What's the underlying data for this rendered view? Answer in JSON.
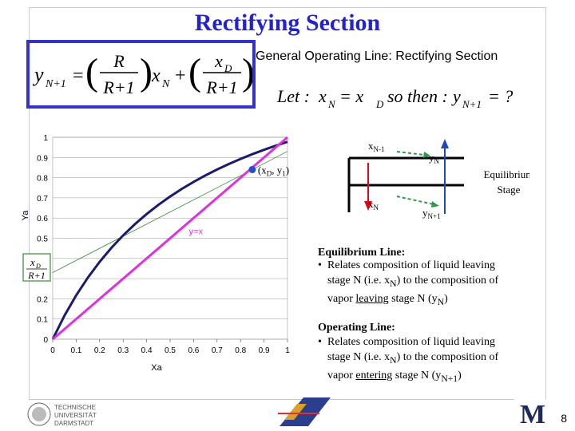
{
  "title": "Rectifying Section",
  "equation_subtitle": "General Operating Line: Rectifying Section",
  "equation": {
    "lhs_var": "y",
    "lhs_sub": "N+1",
    "eq": "=",
    "frac1_num": "R",
    "frac1_den": "R+1",
    "x_var": "x",
    "x_sub": "N",
    "plus": "+",
    "frac2_num_var": "x",
    "frac2_num_sub": "D",
    "frac2_den": "R+1"
  },
  "let_equation": {
    "let": "Let :",
    "x_var": "x",
    "x_sub": "N",
    "eq1": "= x",
    "eq1_sub": "D",
    "so": "so then :",
    "y_var": "y",
    "y_sub": "N+1",
    "rest": "= ?"
  },
  "chart_data": {
    "type": "line",
    "xlabel": "Xa",
    "ylabel": "Ya",
    "xlim": [
      0,
      1
    ],
    "ylim": [
      0,
      1
    ],
    "x_ticks": [
      "0",
      "0.1",
      "0.2",
      "0.3",
      "0.4",
      "0.5",
      "0.6",
      "0.7",
      "0.8",
      "0.9",
      "1"
    ],
    "y_ticks": [
      "0",
      "0.1",
      "0.2",
      "0.3",
      "0.4",
      "0.5",
      "0.6",
      "0.7",
      "0.8",
      "0.9",
      "1"
    ],
    "grid": true,
    "series": [
      {
        "kind": "equilibrium",
        "color": "#1a1a6e",
        "x": [
          0,
          0.05,
          0.1,
          0.15,
          0.2,
          0.25,
          0.3,
          0.35,
          0.4,
          0.45,
          0.5,
          0.55,
          0.6,
          0.65,
          0.7,
          0.75,
          0.8,
          0.85,
          0.9,
          0.95,
          1.0
        ],
        "y": [
          0,
          0.1165,
          0.2174,
          0.3056,
          0.3833,
          0.4524,
          0.5141,
          0.5696,
          0.6197,
          0.6653,
          0.7067,
          0.7446,
          0.7792,
          0.8111,
          0.8405,
          0.8677,
          0.8929,
          0.9163,
          0.9381,
          0.9585,
          0.9775
        ]
      },
      {
        "kind": "diagonal",
        "label": "y=x",
        "color": "#dd33dd",
        "x": [
          0,
          1
        ],
        "y": [
          0,
          1
        ]
      },
      {
        "kind": "operating",
        "color": "#3a8a3a",
        "x": [
          0,
          1
        ],
        "y": [
          0.33,
          0.93
        ]
      }
    ],
    "point": {
      "label_open": "(x",
      "label_sub1": "D",
      "label_mid": ", y",
      "label_sub2": "1",
      "label_close": ")",
      "x": 0.85,
      "y": 0.84
    },
    "intercept_label": {
      "num_var": "x",
      "num_sub": "D",
      "den": "R+1"
    }
  },
  "stage_diagram": {
    "x_top": "x",
    "x_top_sub": "N-1",
    "y_top": "y",
    "y_top_sub": "N",
    "x_bot": "x",
    "x_bot_sub": "N",
    "y_bot": "y",
    "y_bot_sub": "N+1",
    "stage_label_line1": "Equilibrium",
    "stage_label_line2": "Stage"
  },
  "equilibrium_note": {
    "heading": "Equilibrium Line:",
    "bullet": "•",
    "line1": "Relates composition of liquid leaving",
    "line2_a": "stage N (i.e. x",
    "line2_sub": "N",
    "line2_b": ") to the composition of",
    "line3_a": "vapor",
    "line3_u": "leaving",
    "line3_b": "stage N (y",
    "line3_sub": "N",
    "line3_c": ")"
  },
  "operating_note": {
    "heading": "Operating Line:",
    "bullet": "•",
    "line1": "Relates composition of liquid leaving",
    "line2_a": "stage N (i.e. x",
    "line2_sub": "N",
    "line2_b": ") to the composition of",
    "line3_a": "vapor",
    "line3_u": "entering",
    "line3_b": "stage N (y",
    "line3_sub": "N+1",
    "line3_c": ")"
  },
  "footer": {
    "tud_line1": "TECHNISCHE",
    "tud_line2": "UNIVERSITÄT",
    "tud_line3": "DARMSTADT",
    "michigan_logo": "M",
    "page_number": "8"
  }
}
